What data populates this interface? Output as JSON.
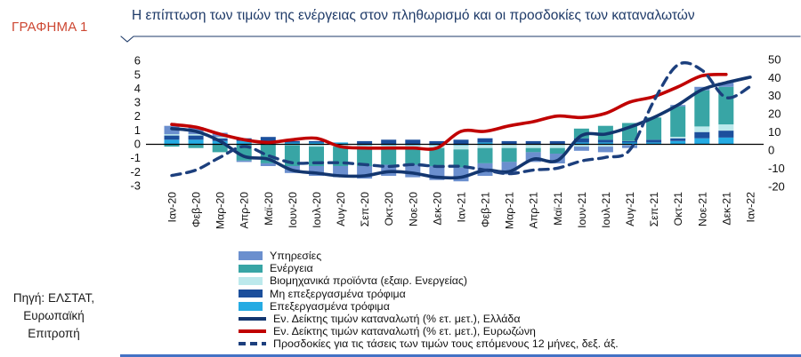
{
  "panel": {
    "figure_label": "ΓΡΑΦΗΜΑ 1",
    "source_lines": [
      "Πηγή: ΕΛΣΤΑΤ,",
      "Ευρωπαϊκή",
      "Επιτροπή"
    ]
  },
  "chart_data": {
    "type": "combo: stacked bar contributions + lines",
    "title": "Η επίπτωση των τιμών της ενέργειας στον πληθωρισμό και οι προσδοκίες των καταναλωτών",
    "categories": [
      "Ιαν-20",
      "Φεβ-20",
      "Μαρ-20",
      "Απρ-20",
      "Μαϊ-20",
      "Ιουν-20",
      "Ιουλ-20",
      "Αυγ-20",
      "Σεπ-20",
      "Οκτ-20",
      "Νοε-20",
      "Δεκ-20",
      "Ιαν-21",
      "Φεβ-21",
      "Μαρ-21",
      "Απρ-21",
      "Μαϊ-21",
      "Ιουν-21",
      "Ιουλ-21",
      "Αυγ-21",
      "Σεπ-21",
      "Οκτ-21",
      "Νοε-21",
      "Δεκ-21",
      "Ιαν-22"
    ],
    "left_axis": {
      "min": -3,
      "max": 6,
      "ticks": [
        6,
        5,
        4,
        3,
        2,
        1,
        0,
        -1,
        -2,
        -3
      ]
    },
    "right_axis": {
      "min": -20,
      "max": 50,
      "ticks": [
        50,
        40,
        30,
        20,
        10,
        0,
        -10,
        -20
      ]
    },
    "grid": "off",
    "legend_position": "bottom",
    "bar_series": [
      {
        "name": "Υπηρεσίες",
        "color": "#6b8fce",
        "values": [
          0.6,
          0.5,
          0.3,
          -0.1,
          -0.2,
          -0.5,
          -0.7,
          -0.8,
          -0.9,
          -0.8,
          -0.9,
          -1.0,
          -1.0,
          -0.9,
          -0.9,
          -0.7,
          -0.7,
          -0.3,
          -0.4,
          -0.2,
          0.0,
          0.1,
          0.25,
          0.3,
          null
        ]
      },
      {
        "name": "Ενέργεια",
        "color": "#38a5a5",
        "values": [
          -0.2,
          -0.3,
          -0.6,
          -1.2,
          -1.4,
          -1.5,
          -1.4,
          -1.4,
          -1.3,
          -1.2,
          -1.2,
          -1.3,
          -1.3,
          -1.1,
          -1.0,
          -0.3,
          -0.4,
          0.7,
          1.0,
          1.3,
          1.6,
          2.2,
          2.6,
          2.7,
          null
        ]
      },
      {
        "name": "Βιομηχανικά προϊόντα (εξαιρ. Ενεργείας)",
        "color": "#bce9ec",
        "values": [
          0.1,
          0.1,
          0.1,
          0.0,
          0.0,
          -0.1,
          -0.2,
          -0.2,
          -0.2,
          -0.2,
          -0.2,
          -0.2,
          -0.3,
          -0.3,
          -0.3,
          -0.3,
          -0.3,
          -0.2,
          -0.2,
          -0.1,
          0.0,
          0.1,
          0.4,
          0.45,
          null
        ]
      },
      {
        "name": "Μη επεξεργασμένα τρόφιμα",
        "color": "#1c4f9c",
        "values": [
          0.3,
          0.3,
          0.2,
          0.2,
          0.3,
          0.1,
          0.1,
          0.0,
          0.2,
          0.3,
          0.3,
          0.2,
          0.3,
          0.3,
          0.2,
          0.2,
          0.2,
          0.3,
          0.2,
          0.1,
          0.2,
          0.2,
          0.45,
          0.5,
          null
        ]
      },
      {
        "name": "Επεξεργασμένα τρόφιμα",
        "color": "#25abe3",
        "values": [
          0.3,
          0.3,
          0.2,
          0.2,
          0.2,
          0.1,
          0.1,
          0.1,
          -0.1,
          -0.1,
          -0.1,
          -0.1,
          -0.1,
          0.1,
          0.0,
          0.0,
          0.0,
          0.1,
          0.1,
          0.1,
          0.1,
          0.2,
          0.4,
          0.45,
          null
        ]
      }
    ],
    "line_series": [
      {
        "name": "Εν. Δείκτης τιμών καταναλωτή (% ετ. μετ.), Ελλάδα",
        "color": "#13366f",
        "style": "solid",
        "axis": "left",
        "values": [
          1.1,
          0.9,
          0.2,
          -0.9,
          -1.1,
          -1.9,
          -2.1,
          -2.3,
          -2.3,
          -2.0,
          -2.1,
          -2.4,
          -2.4,
          -1.9,
          -2.0,
          -1.1,
          -1.2,
          0.6,
          0.7,
          1.2,
          1.9,
          2.8,
          3.9,
          4.4,
          4.8
        ]
      },
      {
        "name": "Εν. Δείκτης τιμών καταναλωτή (% ετ. μετ.), Ευρωζώνη",
        "color": "#c00000",
        "style": "solid",
        "axis": "left",
        "values": [
          1.4,
          1.2,
          0.7,
          0.3,
          0.1,
          0.3,
          0.4,
          -0.2,
          -0.3,
          -0.3,
          -0.3,
          -0.3,
          0.9,
          0.9,
          1.3,
          1.6,
          2.0,
          1.9,
          2.2,
          3.0,
          3.4,
          4.1,
          4.9,
          5.0,
          null
        ]
      },
      {
        "name": "Προσδοκίες για τις τάσεις των τιμών τους επόμενους 12 μήνες, δεξ. άξ.",
        "color": "#1c3f7d",
        "style": "dashed",
        "axis": "right",
        "values": [
          -14,
          -11,
          -4,
          2,
          -3,
          -7,
          -7,
          -7,
          -8,
          -9,
          -8,
          -9,
          -9,
          -11,
          -13,
          -11,
          -10,
          -6,
          -4,
          0,
          27,
          47,
          44,
          29,
          35
        ]
      }
    ]
  }
}
